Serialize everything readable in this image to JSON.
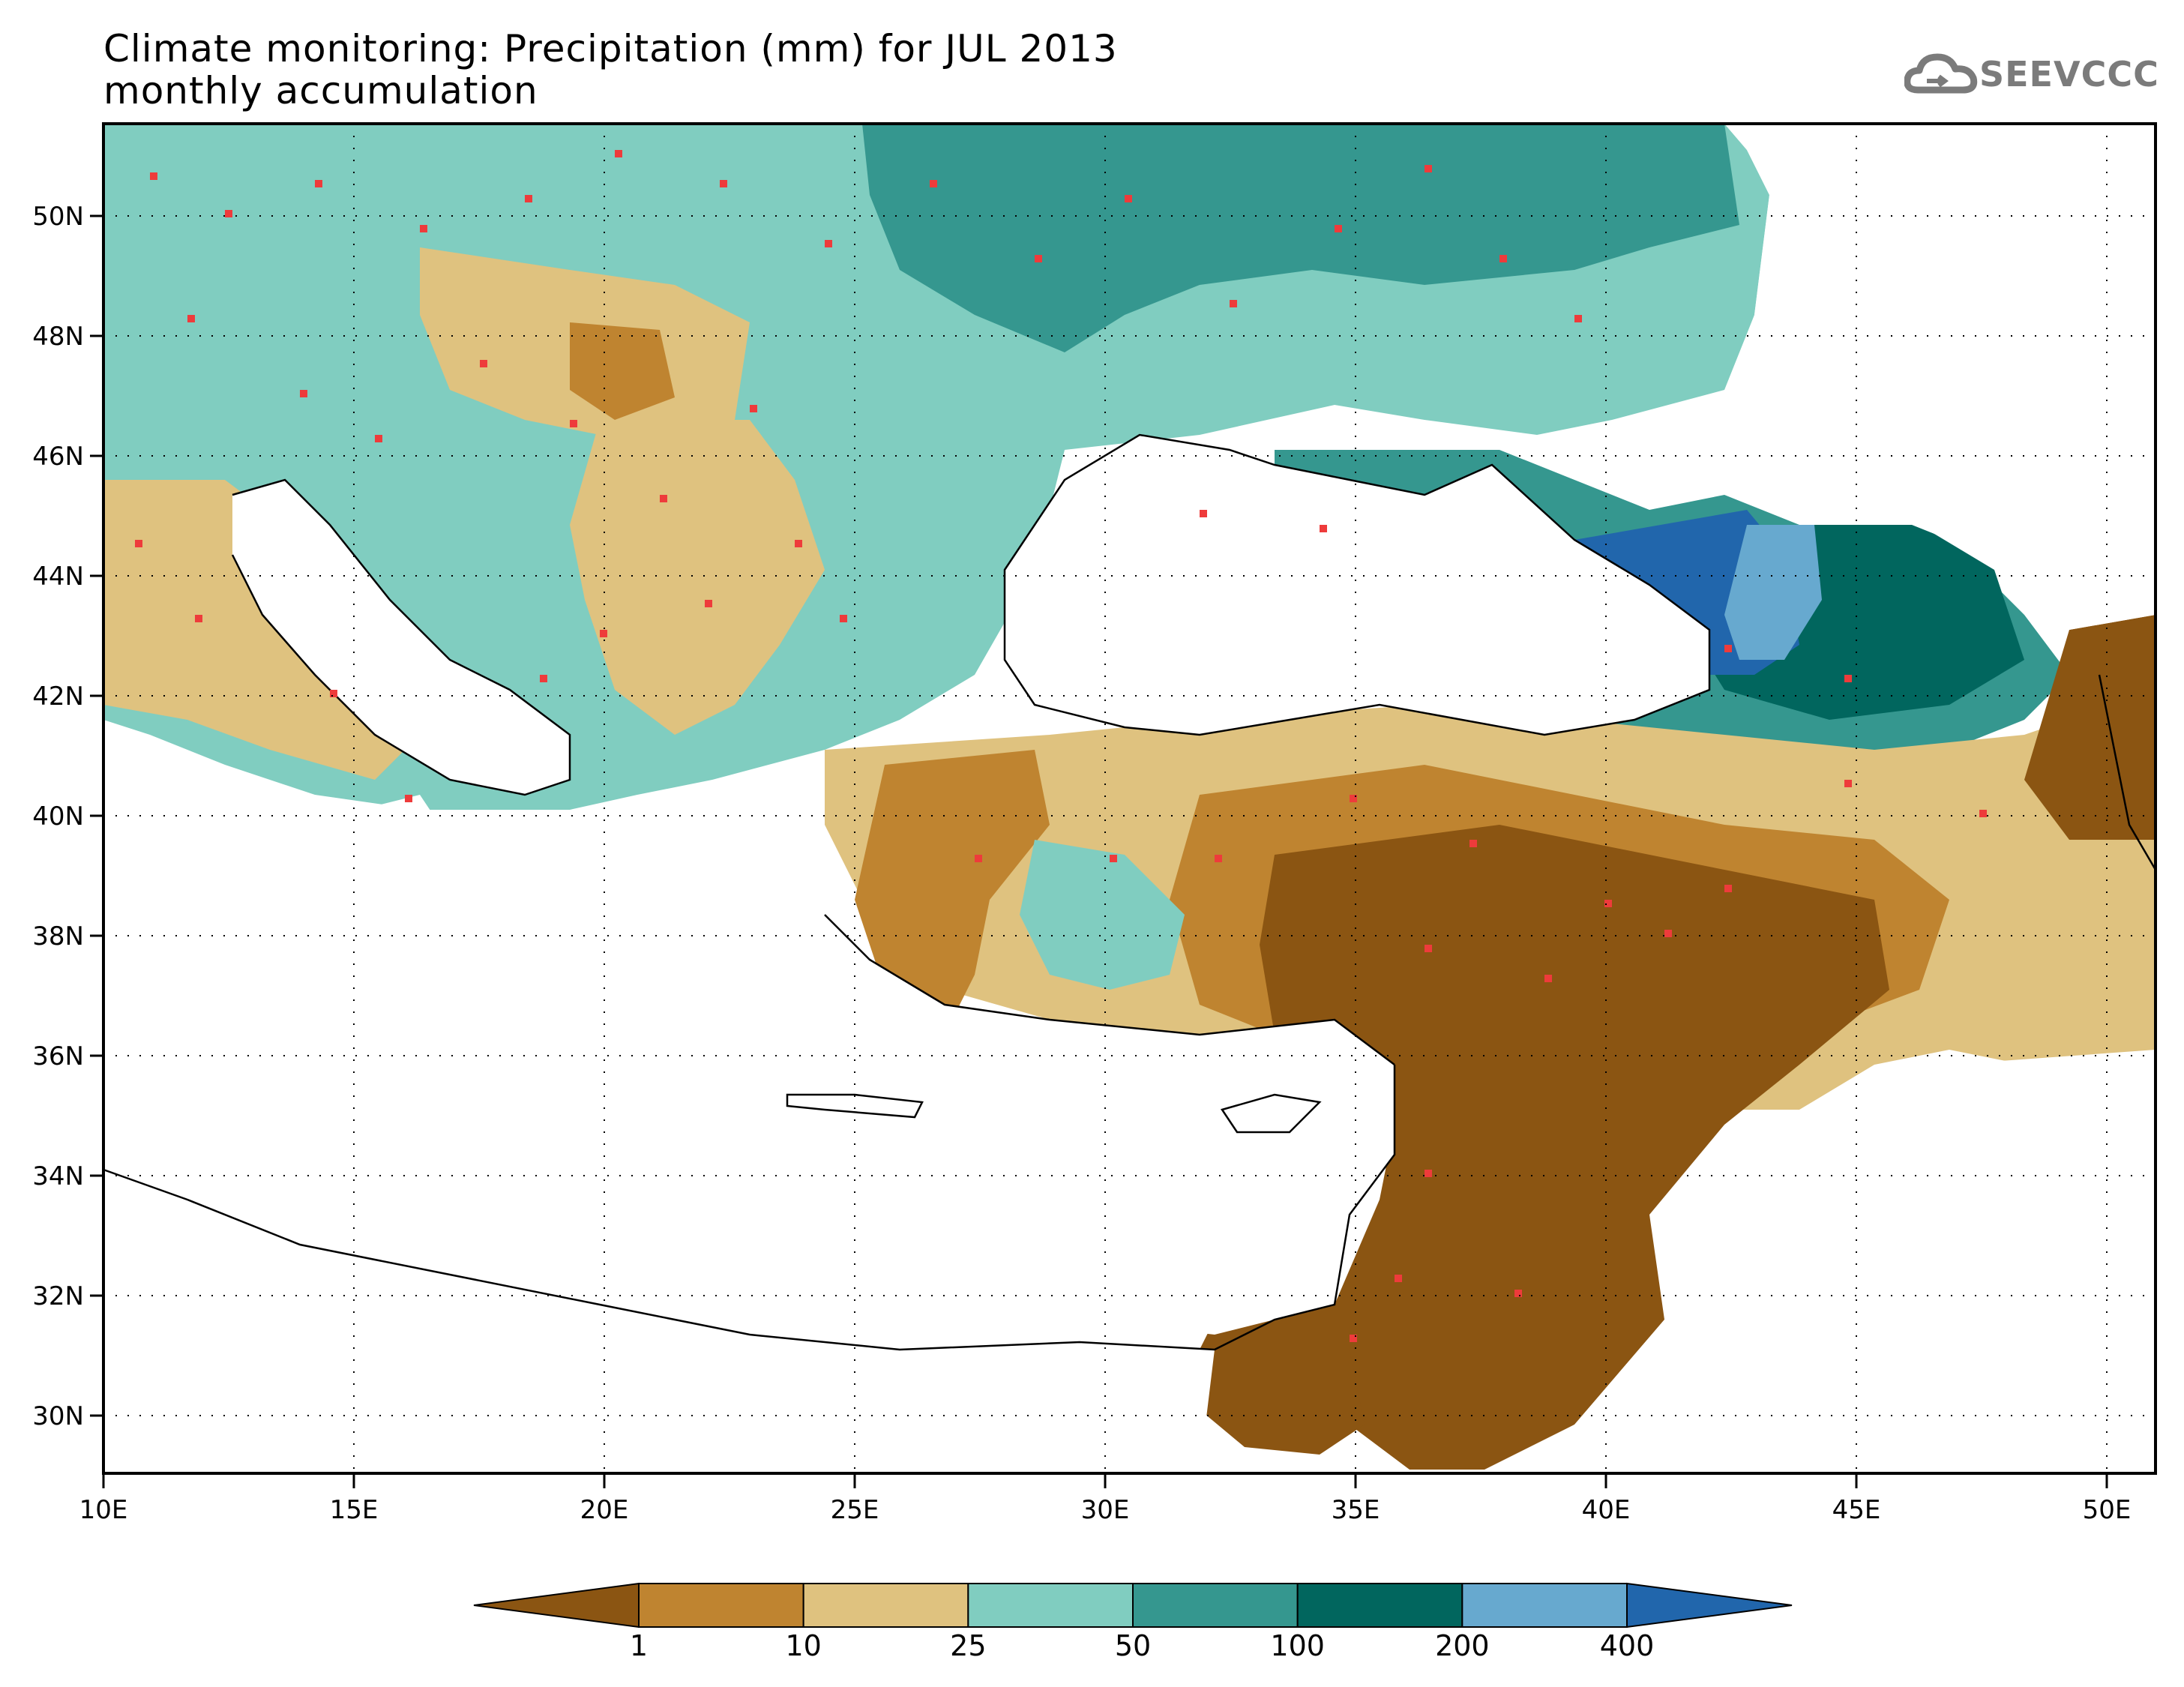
{
  "header": {
    "title_line1": "Climate monitoring: Precipitation (mm) for JUL 2013",
    "title_line2": "monthly accumulation"
  },
  "logo": {
    "text": "SEEVCCC",
    "icon": "cloud-icon"
  },
  "map": {
    "lon_labels": [
      "10E",
      "15E",
      "20E",
      "25E",
      "30E",
      "35E",
      "40E",
      "45E",
      "50E"
    ],
    "lat_labels": [
      "50N",
      "48N",
      "46N",
      "44N",
      "42N",
      "40N",
      "38N",
      "36N",
      "34N",
      "32N",
      "30N"
    ],
    "grid": "dotted",
    "station_marker_color": "#ee3b3b"
  },
  "colorbar": {
    "bins": [
      {
        "color": "#8b5512"
      },
      {
        "color": "#bf8430"
      },
      {
        "color": "#dfc27f"
      },
      {
        "color": "#80cdc0"
      },
      {
        "color": "#35978f"
      },
      {
        "color": "#01665e"
      },
      {
        "color": "#67a9cf"
      },
      {
        "color": "#2166ac"
      }
    ],
    "labels": [
      "1",
      "10",
      "25",
      "50",
      "100",
      "200",
      "400"
    ]
  }
}
